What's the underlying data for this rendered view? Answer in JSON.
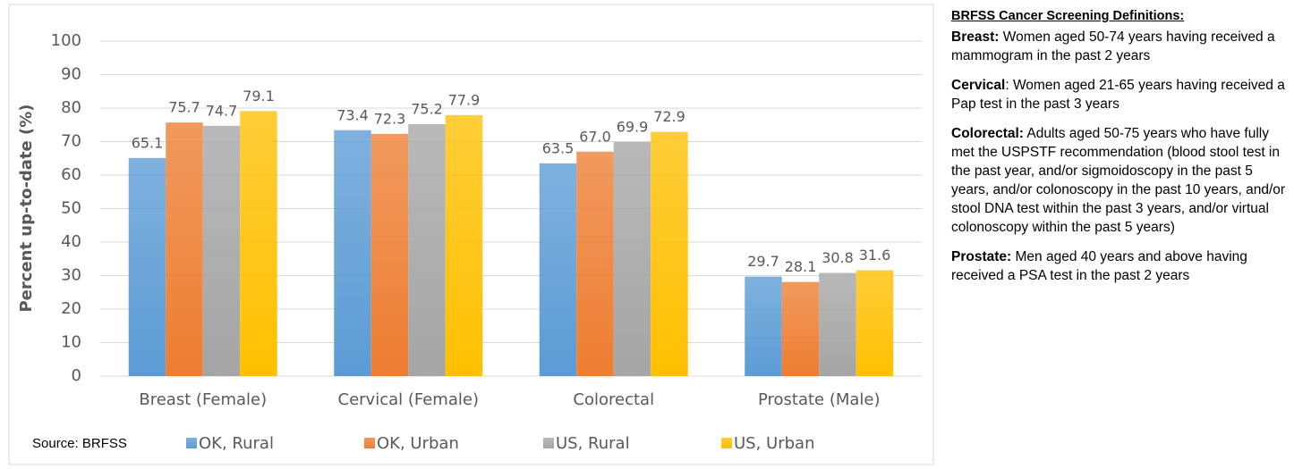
{
  "chart_data": {
    "type": "bar",
    "y_label": "Percent up-to-date (%)",
    "source": "Source: BRFSS",
    "categories": [
      "Breast (Female)",
      "Cervical (Female)",
      "Colorectal",
      "Prostate (Male)"
    ],
    "series": [
      {
        "name": "OK, Rural",
        "color": "#5b9bd5",
        "values": [
          65.1,
          73.4,
          63.5,
          29.7
        ],
        "value_labels": [
          "65.1",
          "73.4",
          "63.5",
          "29.7"
        ]
      },
      {
        "name": "OK, Urban",
        "color": "#ed7d31",
        "values": [
          75.7,
          72.3,
          67,
          28.1
        ],
        "value_labels": [
          "75.7",
          "72.3",
          "67.0",
          "28.1"
        ]
      },
      {
        "name": "US, Rural",
        "color": "#a5a5a5",
        "values": [
          74.7,
          75.2,
          69.9,
          30.8
        ],
        "value_labels": [
          "74.7",
          "75.2",
          "69.9",
          "30.8"
        ]
      },
      {
        "name": "US, Urban",
        "color": "#ffc000",
        "values": [
          79.1,
          77.9,
          72.9,
          31.6
        ],
        "value_labels": [
          "79.1",
          "77.9",
          "72.9",
          "31.6"
        ]
      }
    ],
    "ylim": [
      0,
      100
    ],
    "yticks": [
      0,
      10,
      20,
      30,
      40,
      50,
      60,
      70,
      80,
      90,
      100
    ],
    "grid": true
  },
  "definitions_panel": {
    "title": "BRFSS Cancer Screening Definitions:",
    "items": [
      {
        "term": "Breast:",
        "text": " Women aged 50-74 years having received a mammogram in the past 2 years"
      },
      {
        "term": "Cervical",
        "text": ": Women aged 21-65 years having received a Pap test in the past 3 years"
      },
      {
        "term": "Colorectal:",
        "text": " Adults aged 50-75 years who have fully met the USPSTF recommendation (blood stool test in the past year, and/or sigmoidoscopy in the past 5 years, and/or colonoscopy in the past 10 years, and/or stool DNA test within the past 3 years, and/or virtual colonoscopy within the past 5 years)"
      },
      {
        "term": "Prostate:",
        "text": " Men aged 40 years and above having received a PSA test in the past 2 years"
      }
    ]
  }
}
